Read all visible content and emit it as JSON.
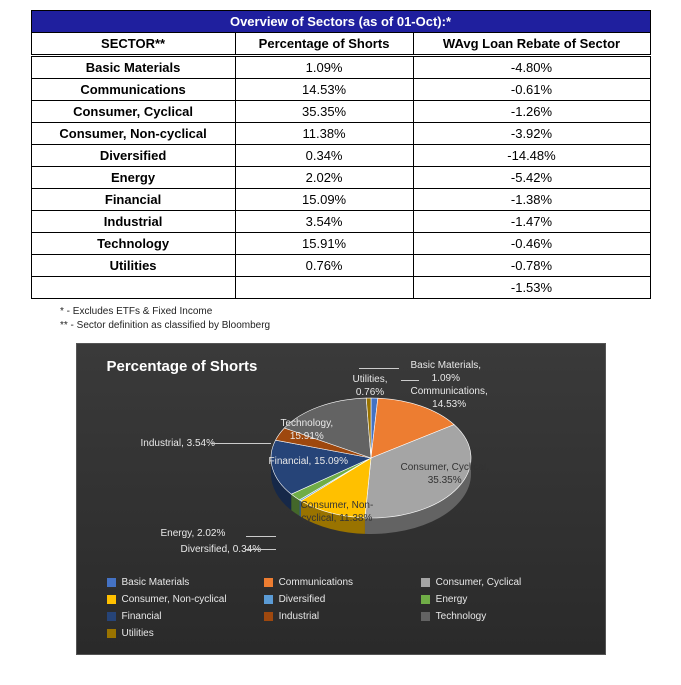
{
  "table": {
    "title": "Overview of Sectors (as of 01-Oct):*",
    "columns": [
      "SECTOR**",
      "Percentage of Shorts",
      "WAvg Loan Rebate of Sector"
    ],
    "rows": [
      {
        "sector": "Basic Materials",
        "pct": "1.09%",
        "reb": "-4.80%"
      },
      {
        "sector": "Communications",
        "pct": "14.53%",
        "reb": "-0.61%"
      },
      {
        "sector": "Consumer, Cyclical",
        "pct": "35.35%",
        "reb": "-1.26%"
      },
      {
        "sector": "Consumer, Non-cyclical",
        "pct": "11.38%",
        "reb": "-3.92%"
      },
      {
        "sector": "Diversified",
        "pct": "0.34%",
        "reb": "-14.48%"
      },
      {
        "sector": "Energy",
        "pct": "2.02%",
        "reb": "-5.42%"
      },
      {
        "sector": "Financial",
        "pct": "15.09%",
        "reb": "-1.38%"
      },
      {
        "sector": "Industrial",
        "pct": "3.54%",
        "reb": "-1.47%"
      },
      {
        "sector": "Technology",
        "pct": "15.91%",
        "reb": "-0.46%"
      },
      {
        "sector": "Utilities",
        "pct": "0.76%",
        "reb": "-0.78%"
      }
    ],
    "total_reb": "-1.53%",
    "footnote1": "* - Excludes ETFs & Fixed Income",
    "footnote2": "** - Sector definition as classified by Bloomberg"
  },
  "chart": {
    "type": "pie",
    "title": "Percentage of Shorts",
    "background": "#333333",
    "text_color": "#e8e8e8",
    "title_fontsize": 15,
    "label_fontsize": 10,
    "slices": [
      {
        "name": "Basic Materials",
        "value": 1.09,
        "color": "#4472c4",
        "label": "Basic Materials, 1.09%"
      },
      {
        "name": "Communications",
        "value": 14.53,
        "color": "#ed7d31",
        "label": "Communications, 14.53%"
      },
      {
        "name": "Consumer, Cyclical",
        "value": 35.35,
        "color": "#a5a5a5",
        "label": "Consumer, Cyclical, 35.35%"
      },
      {
        "name": "Consumer, Non-cyclical",
        "value": 11.38,
        "color": "#ffc000",
        "label": "Consumer, Non-cyclical, 11.38%"
      },
      {
        "name": "Diversified",
        "value": 0.34,
        "color": "#5b9bd5",
        "label": "Diversified, 0.34%"
      },
      {
        "name": "Energy",
        "value": 2.02,
        "color": "#70ad47",
        "label": "Energy, 2.02%"
      },
      {
        "name": "Financial",
        "value": 15.09,
        "color": "#264478",
        "label": "Financial, 15.09%"
      },
      {
        "name": "Industrial",
        "value": 3.54,
        "color": "#9e480e",
        "label": "Industrial, 3.54%"
      },
      {
        "name": "Technology",
        "value": 15.91,
        "color": "#636363",
        "label": "Technology, 15.91%"
      },
      {
        "name": "Utilities",
        "value": 0.76,
        "color": "#997300",
        "label": "Utilities, 0.76%"
      }
    ],
    "legend": [
      {
        "name": "Basic Materials",
        "color": "#4472c4"
      },
      {
        "name": "Communications",
        "color": "#ed7d31"
      },
      {
        "name": "Consumer, Cyclical",
        "color": "#a5a5a5"
      },
      {
        "name": "Consumer, Non-cyclical",
        "color": "#ffc000"
      },
      {
        "name": "Diversified",
        "color": "#5b9bd5"
      },
      {
        "name": "Energy",
        "color": "#70ad47"
      },
      {
        "name": "Financial",
        "color": "#264478"
      },
      {
        "name": "Industrial",
        "color": "#9e480e"
      },
      {
        "name": "Technology",
        "color": "#636363"
      },
      {
        "name": "Utilities",
        "color": "#997300"
      }
    ]
  }
}
